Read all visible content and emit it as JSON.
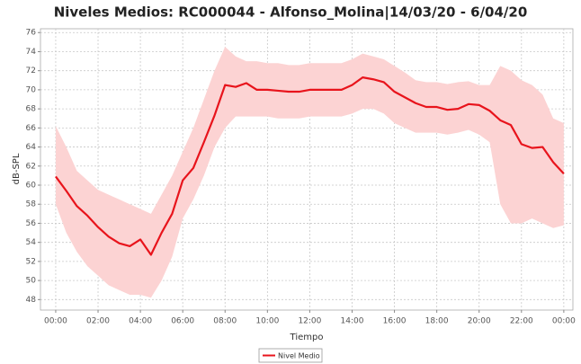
{
  "chart_data": {
    "type": "line",
    "title": "Niveles Medios: RC000044 - Alfonso_Molina|14/03/20 - 6/04/20",
    "x_label": "Tiempo",
    "y_label": "dB-SPL",
    "x": [
      0,
      0.5,
      1,
      1.5,
      2,
      2.5,
      3,
      3.5,
      4,
      4.5,
      5,
      5.5,
      6,
      6.5,
      7,
      7.5,
      8,
      8.5,
      9,
      9.5,
      10,
      10.5,
      11,
      11.5,
      12,
      12.5,
      13,
      13.5,
      14,
      14.5,
      15,
      15.5,
      16,
      16.5,
      17,
      17.5,
      18,
      18.5,
      19,
      19.5,
      20,
      20.5,
      21,
      21.5,
      22,
      22.5,
      23,
      23.5,
      24
    ],
    "series": [
      {
        "name": "Nivel Medio",
        "color": "#e8141c",
        "values": [
          60.9,
          59.4,
          57.8,
          56.8,
          55.6,
          54.6,
          53.9,
          53.6,
          54.3,
          52.7,
          55.0,
          57.0,
          60.5,
          61.8,
          64.5,
          67.3,
          70.5,
          70.3,
          70.7,
          70.0,
          70.0,
          69.9,
          69.8,
          69.8,
          70.0,
          70.0,
          70.0,
          70.0,
          70.5,
          71.3,
          71.1,
          70.8,
          69.8,
          69.2,
          68.6,
          68.2,
          68.2,
          67.9,
          68.0,
          68.5,
          68.4,
          67.8,
          66.8,
          66.3,
          64.3,
          63.9,
          64.0,
          62.4,
          61.2
        ]
      }
    ],
    "band": {
      "color": "#fcd3d3",
      "upper": [
        66.2,
        64,
        61.5,
        60.5,
        59.5,
        59,
        58.5,
        58,
        57.5,
        57,
        59,
        61,
        63.5,
        66,
        69,
        72,
        74.5,
        73.5,
        73,
        73,
        72.8,
        72.8,
        72.6,
        72.6,
        72.8,
        72.8,
        72.8,
        72.8,
        73.2,
        73.8,
        73.5,
        73.2,
        72.5,
        71.8,
        71,
        70.8,
        70.8,
        70.6,
        70.8,
        70.9,
        70.5,
        70.5,
        72.5,
        72,
        71,
        70.5,
        69.5,
        67,
        66.5
      ],
      "lower": [
        58,
        55,
        53,
        51.5,
        50.5,
        49.5,
        49,
        48.5,
        48.5,
        48.2,
        50,
        52.5,
        56.5,
        58.5,
        61,
        64,
        66,
        67.2,
        67.2,
        67.2,
        67.2,
        67,
        67,
        67,
        67.2,
        67.2,
        67.2,
        67.2,
        67.5,
        68,
        68,
        67.5,
        66.5,
        66,
        65.5,
        65.5,
        65.5,
        65.3,
        65.5,
        65.8,
        65.3,
        64.5,
        58,
        56,
        56,
        56.5,
        56,
        55.5,
        55.8
      ]
    },
    "xlim": [
      -0.72,
      24.43
    ],
    "xticks": [
      {
        "value": 0,
        "label": "00:00"
      },
      {
        "value": 2,
        "label": "02:00"
      },
      {
        "value": 4,
        "label": "04:00"
      },
      {
        "value": 6,
        "label": "06:00"
      },
      {
        "value": 8,
        "label": "08:00"
      },
      {
        "value": 10,
        "label": "10:00"
      },
      {
        "value": 12,
        "label": "12:00"
      },
      {
        "value": 14,
        "label": "14:00"
      },
      {
        "value": 16,
        "label": "16:00"
      },
      {
        "value": 18,
        "label": "18:00"
      },
      {
        "value": 20,
        "label": "20:00"
      },
      {
        "value": 22,
        "label": "22:00"
      },
      {
        "value": 24,
        "label": "00:00"
      }
    ],
    "ylim": [
      46.9,
      76.4
    ],
    "yticks": [
      48,
      50,
      52,
      54,
      56,
      58,
      60,
      62,
      64,
      66,
      68,
      70,
      72,
      74,
      76
    ],
    "grid": true,
    "legend": "bottom"
  }
}
